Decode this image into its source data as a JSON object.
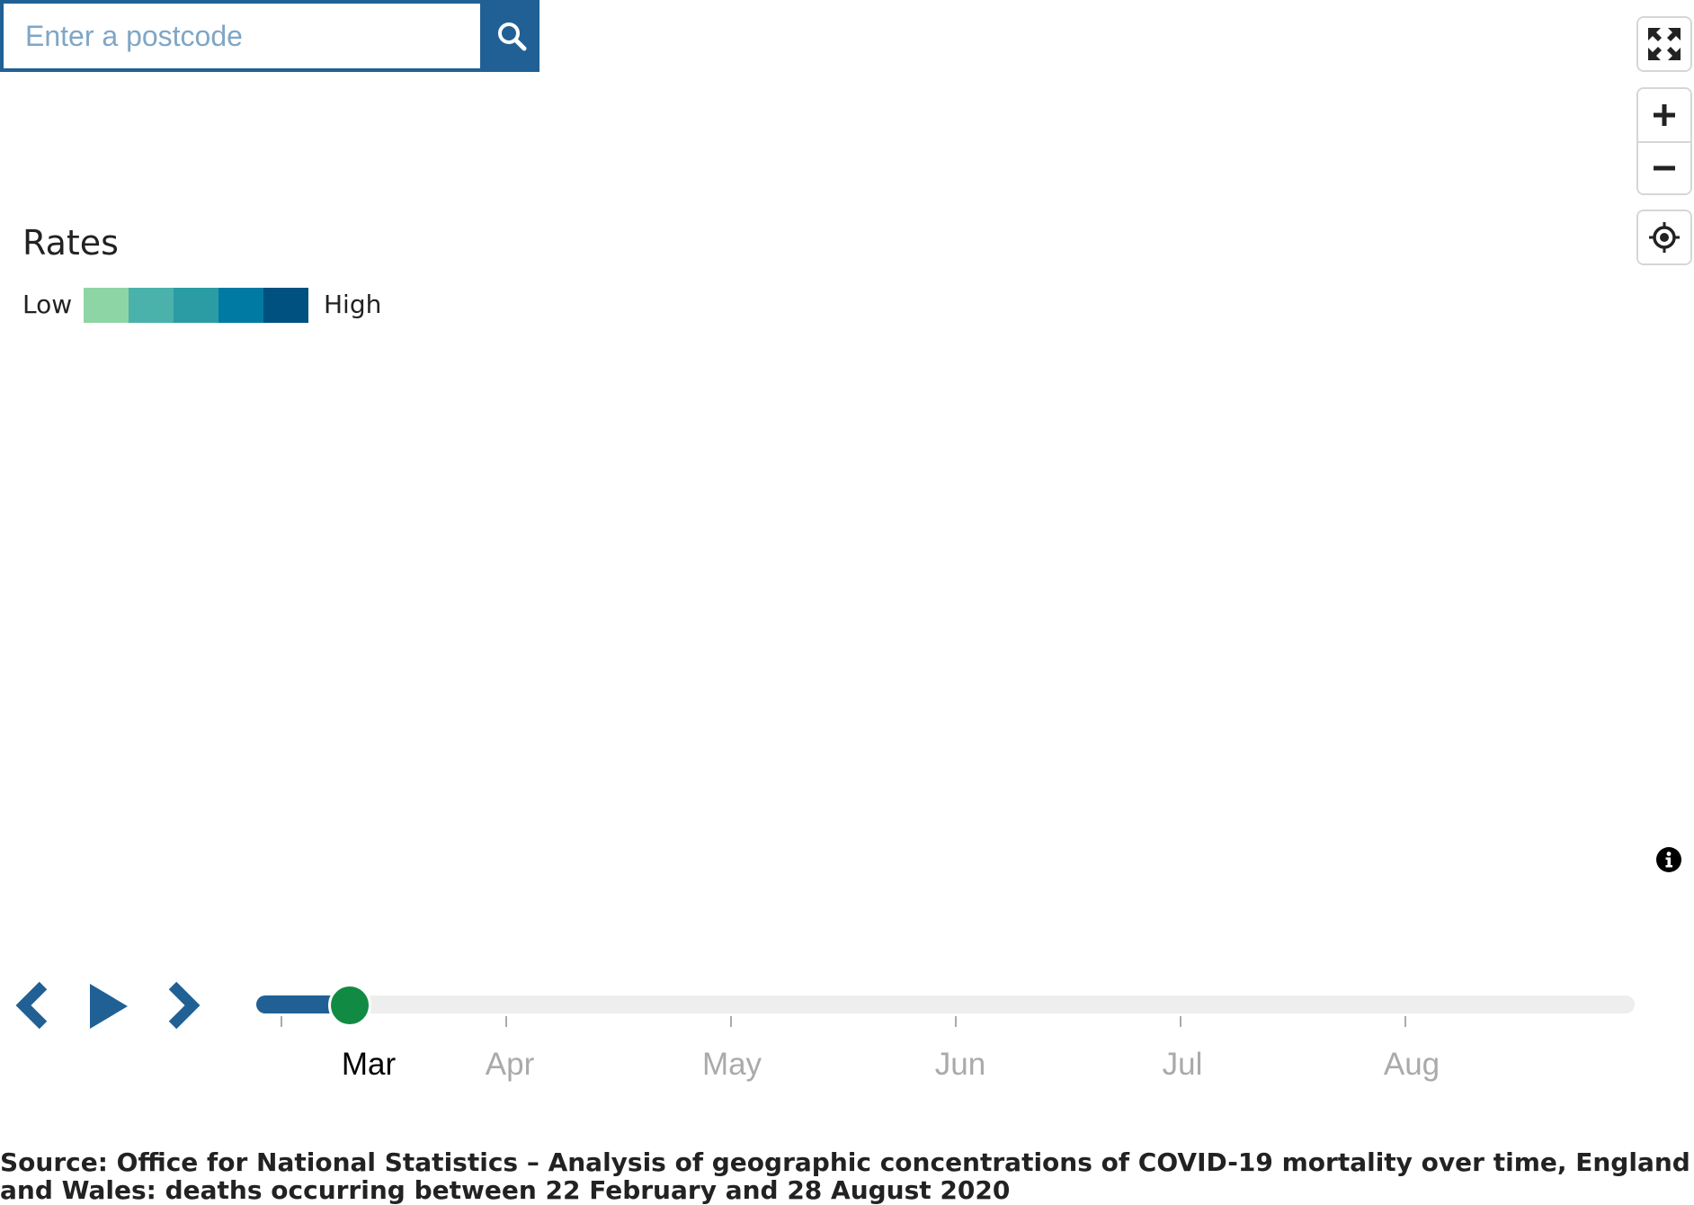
{
  "search": {
    "placeholder": "Enter a postcode",
    "button_icon": "search-icon"
  },
  "legend": {
    "title": "Rates",
    "low_label": "Low",
    "high_label": "High",
    "colors": [
      "#8ed5a5",
      "#4ab1ab",
      "#2c9ca4",
      "#007aa2",
      "#00517f"
    ]
  },
  "controls": {
    "fullscreen_icon": "fullscreen-icon",
    "zoom_in_icon": "plus-icon",
    "zoom_out_icon": "minus-icon",
    "locate_icon": "locate-icon",
    "info_icon": "info-icon"
  },
  "timeline": {
    "prev_icon": "chevron-left-icon",
    "play_icon": "play-icon",
    "next_icon": "chevron-right-icon",
    "months": [
      "Mar",
      "Apr",
      "May",
      "Jun",
      "Jul",
      "Aug"
    ],
    "active_month": "Mar",
    "progress": 0.068,
    "colors": {
      "track": "#eeeeee",
      "fill": "#206095",
      "handle": "#118a43"
    }
  },
  "source": {
    "text": "Source: Office for National Statistics – Analysis of geographic concentrations of COVID-19 mortality over time, England and Wales: deaths occurring between 22 February and 28 August 2020"
  }
}
